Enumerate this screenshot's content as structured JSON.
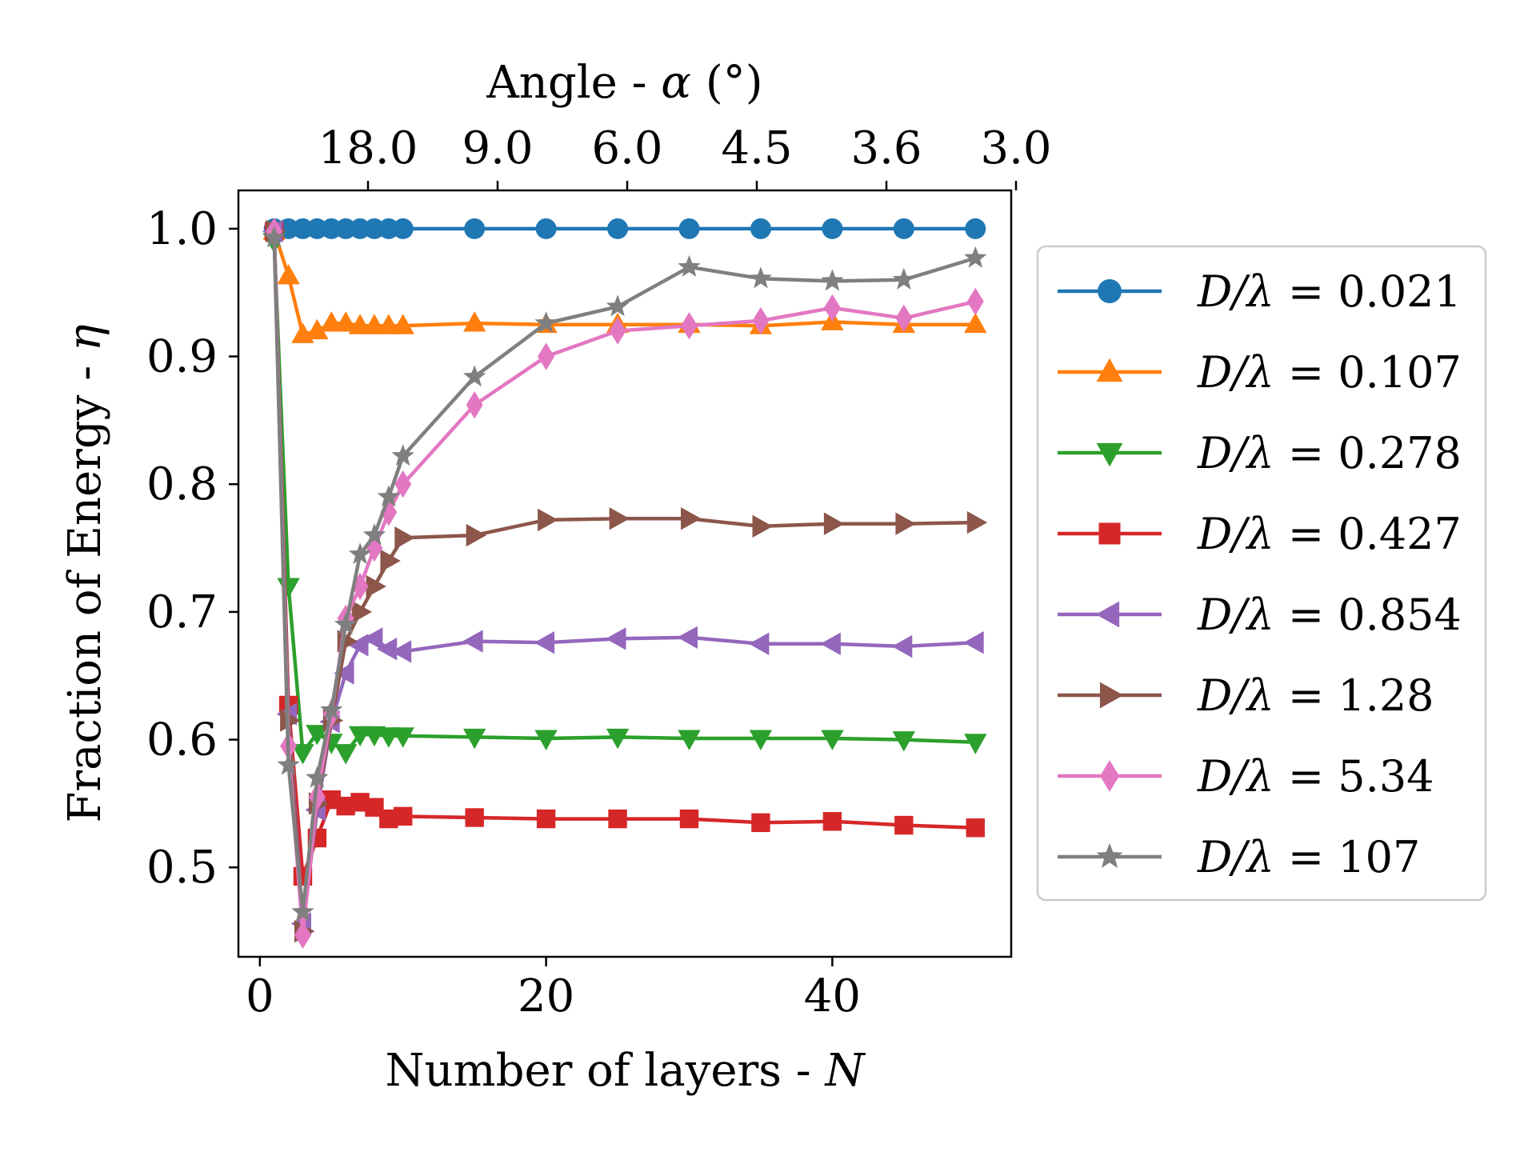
{
  "chart_data": {
    "type": "line",
    "xlabel": "Number of layers - ",
    "xlabel_symbol": "N",
    "ylabel": "Fraction of Energy - ",
    "ylabel_symbol": "η",
    "top_axis_label": "Angle - ",
    "top_axis_symbol": "α",
    "top_axis_unit": " (°)",
    "xlim": [
      -1.5,
      52.5
    ],
    "ylim": [
      0.43,
      1.03
    ],
    "x_ticks": [
      0,
      20,
      40
    ],
    "x_tick_labels": [
      "0",
      "20",
      "40"
    ],
    "y_ticks": [
      0.5,
      0.6,
      0.7,
      0.8,
      0.9,
      1.0
    ],
    "y_tick_labels": [
      "0.5",
      "0.6",
      "0.7",
      "0.8",
      "0.9",
      "1.0"
    ],
    "top_ticks_N": [
      8,
      17,
      26,
      35,
      44,
      53
    ],
    "top_tick_labels": [
      "18.0",
      "9.0",
      "6.0",
      "4.5",
      "3.6",
      "3.0"
    ],
    "grid": false,
    "legend_position": "outside-right",
    "x": [
      1,
      2,
      3,
      4,
      5,
      6,
      7,
      8,
      9,
      10,
      15,
      20,
      25,
      30,
      35,
      40,
      45,
      50
    ],
    "series": [
      {
        "name": "0.021",
        "color": "#1f77b4",
        "marker": "circle",
        "values": [
          1.0,
          1.0,
          1.0,
          1.0,
          1.0,
          1.0,
          1.0,
          1.0,
          1.0,
          1.0,
          1.0,
          1.0,
          1.0,
          1.0,
          1.0,
          1.0,
          1.0,
          1.0
        ]
      },
      {
        "name": "0.107",
        "color": "#ff7f0e",
        "marker": "triangle-up",
        "values": [
          0.998,
          0.963,
          0.917,
          0.92,
          0.926,
          0.926,
          0.924,
          0.924,
          0.924,
          0.924,
          0.926,
          0.925,
          0.925,
          0.925,
          0.924,
          0.927,
          0.925,
          0.925
        ]
      },
      {
        "name": "0.278",
        "color": "#2ca02c",
        "marker": "triangle-down",
        "values": [
          0.99,
          0.72,
          0.59,
          0.605,
          0.598,
          0.59,
          0.604,
          0.604,
          0.603,
          0.603,
          0.602,
          0.601,
          0.602,
          0.601,
          0.601,
          0.601,
          0.6,
          0.598
        ]
      },
      {
        "name": "0.427",
        "color": "#d62728",
        "marker": "square",
        "values": [
          0.998,
          0.627,
          0.493,
          0.523,
          0.553,
          0.548,
          0.551,
          0.547,
          0.538,
          0.54,
          0.539,
          0.538,
          0.538,
          0.538,
          0.535,
          0.536,
          0.533,
          0.531
        ]
      },
      {
        "name": "0.854",
        "color": "#9467bd",
        "marker": "triangle-left",
        "values": [
          0.998,
          0.62,
          0.456,
          0.545,
          0.614,
          0.652,
          0.674,
          0.679,
          0.671,
          0.669,
          0.677,
          0.676,
          0.679,
          0.68,
          0.675,
          0.675,
          0.673,
          0.676
        ]
      },
      {
        "name": "1.28",
        "color": "#8c564b",
        "marker": "triangle-right",
        "values": [
          0.998,
          0.615,
          0.45,
          0.55,
          0.615,
          0.677,
          0.7,
          0.72,
          0.74,
          0.758,
          0.76,
          0.772,
          0.773,
          0.773,
          0.767,
          0.769,
          0.769,
          0.77
        ]
      },
      {
        "name": "5.34",
        "color": "#e377c2",
        "marker": "diamond",
        "values": [
          0.998,
          0.595,
          0.447,
          0.555,
          0.62,
          0.695,
          0.72,
          0.75,
          0.778,
          0.8,
          0.862,
          0.9,
          0.92,
          0.924,
          0.928,
          0.938,
          0.93,
          0.943
        ]
      },
      {
        "name": "107",
        "color": "#7f7f7f",
        "marker": "star",
        "values": [
          0.993,
          0.58,
          0.465,
          0.57,
          0.623,
          0.69,
          0.745,
          0.76,
          0.79,
          0.822,
          0.884,
          0.926,
          0.939,
          0.97,
          0.961,
          0.959,
          0.96,
          0.977
        ]
      }
    ]
  }
}
